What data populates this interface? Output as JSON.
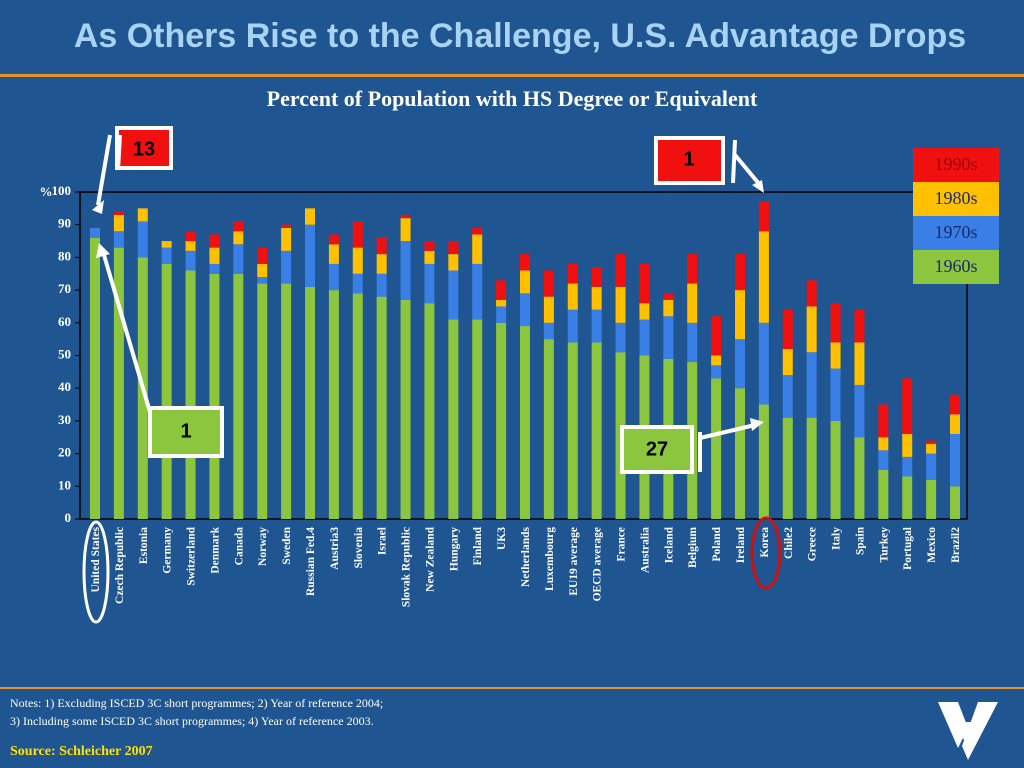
{
  "title": "As Others Rise to the Challenge, U.S. Advantage Drops",
  "chart_data": {
    "type": "stacked_bar",
    "title": "Percent of Population with HS Degree or Equivalent",
    "y_label": "%",
    "categories": [
      "United States",
      "Czech Republic",
      "Estonia",
      "Germany",
      "Switzerland",
      "Denmark",
      "Canada",
      "Norway",
      "Sweden",
      "Russian Fed.4",
      "Austria3",
      "Slovenia",
      "Israel",
      "Slovak Republic",
      "New Zealand",
      "Hungary",
      "Finland",
      "UK3",
      "Netherlands",
      "Luxembourg",
      "EU19  average",
      "OECD average",
      "France",
      "Australia",
      "Iceland",
      "Belgium",
      "Poland",
      "Ireland",
      "Korea",
      "Chile2",
      "Greece",
      "Italy",
      "Spain",
      "Turkey",
      "Portugal",
      "Mexico",
      "Brazil2"
    ],
    "series": [
      {
        "name": "1960s",
        "color": "#8cc63f",
        "values": [
          86,
          83,
          80,
          78,
          76,
          75,
          75,
          72,
          72,
          71,
          70,
          69,
          68,
          67,
          66,
          61,
          61,
          60,
          59,
          55,
          54,
          54,
          51,
          50,
          49,
          48,
          43,
          40,
          35,
          31,
          31,
          30,
          25,
          15,
          13,
          12,
          10
        ]
      },
      {
        "name": "1970s",
        "color": "#3a7fe6",
        "values": [
          3,
          5,
          11,
          5,
          6,
          3,
          9,
          2,
          10,
          19,
          8,
          6,
          7,
          18,
          12,
          15,
          17,
          5,
          10,
          5,
          10,
          10,
          9,
          11,
          13,
          12,
          4,
          15,
          25,
          13,
          20,
          16,
          16,
          6,
          6,
          8,
          16
        ]
      },
      {
        "name": "1980s",
        "color": "#ffc000",
        "values": [
          0,
          5,
          4,
          2,
          3,
          5,
          4,
          4,
          7,
          5,
          6,
          8,
          6,
          7,
          4,
          5,
          9,
          2,
          7,
          8,
          8,
          7,
          11,
          5,
          5,
          12,
          3,
          15,
          28,
          8,
          14,
          8,
          13,
          4,
          7,
          3,
          6
        ]
      },
      {
        "name": "1990s",
        "color": "#f01010",
        "values": [
          0,
          1,
          0,
          0,
          3,
          4,
          3,
          5,
          1,
          0,
          3,
          8,
          5,
          1,
          3,
          4,
          2,
          6,
          5,
          8,
          6,
          6,
          10,
          12,
          2,
          9,
          12,
          11,
          9,
          12,
          8,
          12,
          10,
          10,
          17,
          1,
          6
        ]
      }
    ],
    "ylim": [
      0,
      100
    ],
    "yticks": [
      0,
      10,
      20,
      30,
      40,
      50,
      60,
      70,
      80,
      90,
      100
    ]
  },
  "annotations": [
    "13",
    "1",
    "1",
    "27"
  ],
  "notes": [
    "Notes: 1) Excluding ISCED 3C short programmes; 2) Year of reference 2004;",
    "3) Including some ISCED 3C  short programmes; 4)  Year of reference 2003."
  ],
  "source": "Source: Schleicher 2007"
}
